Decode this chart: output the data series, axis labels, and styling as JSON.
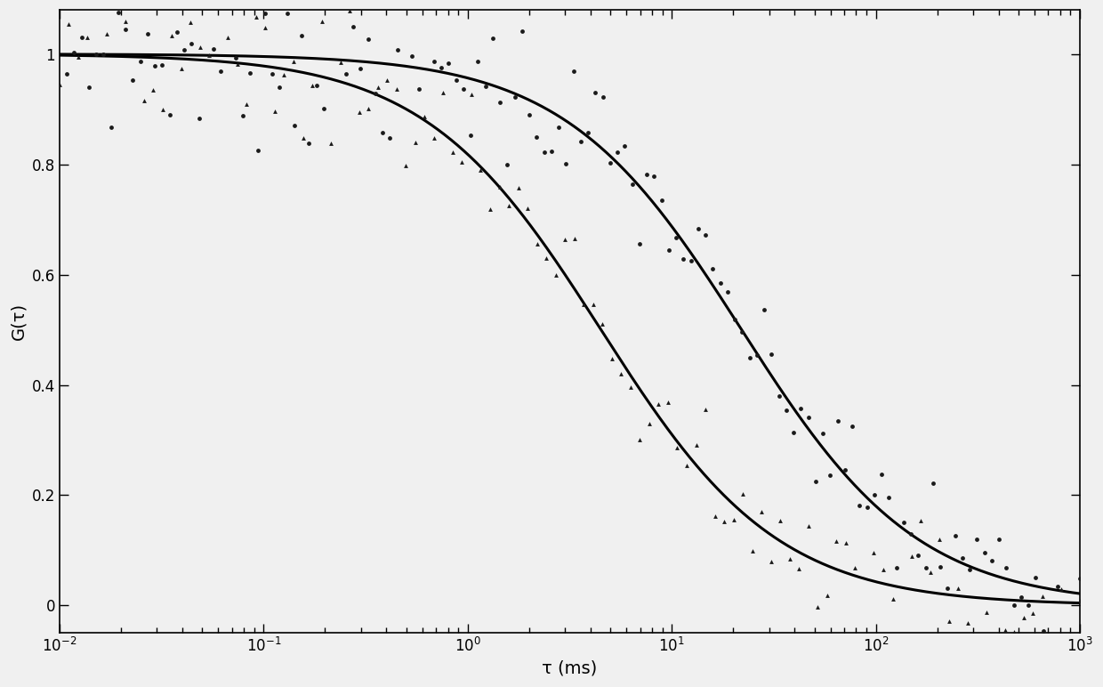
{
  "title": "",
  "xlabel": "τ (ms)",
  "ylabel": "G(τ)",
  "xlim_log": [
    -2,
    3
  ],
  "ylim": [
    -0.05,
    1.08
  ],
  "background_color": "#f0f0f0",
  "curve1_tau_d": 4.5,
  "curve2_tau_d": 22.0,
  "curve_color": "#000000",
  "curve_linewidth": 2.2,
  "dot_color": "#1a1a1a",
  "triangle_color": "#1a1a1a",
  "dot_size": 12,
  "triangle_size": 12,
  "xlabel_fontsize": 14,
  "ylabel_fontsize": 14,
  "tick_fontsize": 12,
  "noise_seed1": 7,
  "noise_seed2": 13,
  "n_dots": 140,
  "n_tri": 110
}
